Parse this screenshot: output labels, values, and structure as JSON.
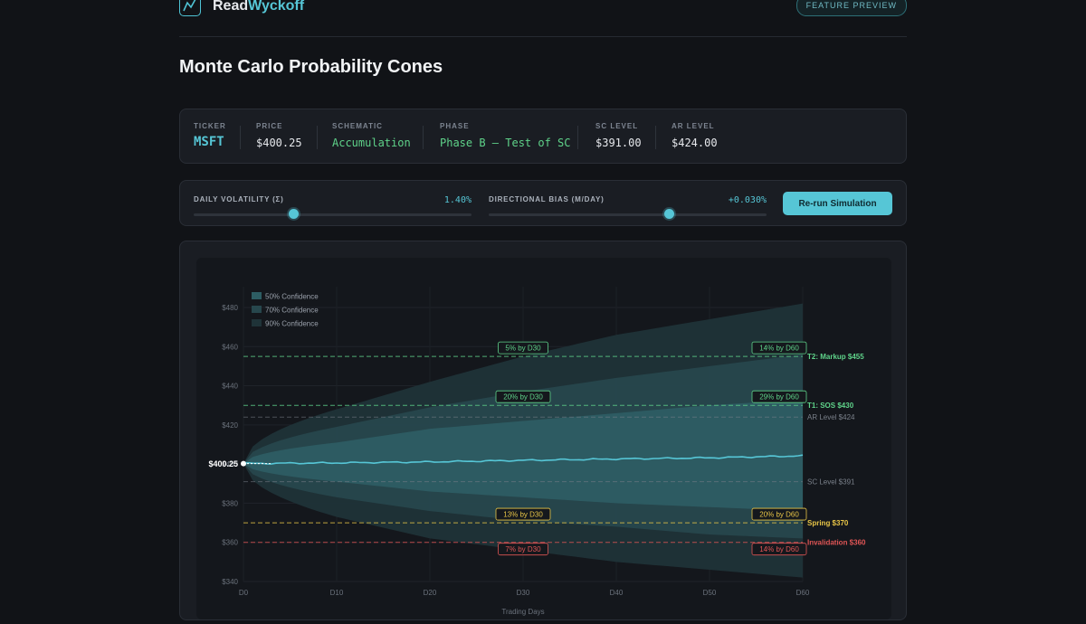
{
  "brand": {
    "name_a": "Read",
    "name_b": "Wyckoff",
    "badge": "FEATURE PREVIEW"
  },
  "page_title": "Monte Carlo Probability Cones",
  "info": {
    "ticker": {
      "label": "TICKER",
      "value": "MSFT"
    },
    "price": {
      "label": "PRICE",
      "value": "$400.25"
    },
    "schematic": {
      "label": "SCHEMATIC",
      "value": "Accumulation"
    },
    "phase": {
      "label": "PHASE",
      "value": "Phase B — Test of SC"
    },
    "sc": {
      "label": "SC LEVEL",
      "value": "$391.00"
    },
    "ar": {
      "label": "AR LEVEL",
      "value": "$424.00"
    }
  },
  "controls": {
    "volatility": {
      "label": "DAILY VOLATILITY (Σ)",
      "value": "1.40%",
      "fraction": 0.36
    },
    "bias": {
      "label": "DIRECTIONAL BIAS (M/DAY)",
      "value": "+0.030%",
      "fraction": 0.65
    },
    "run_label": "Re-run Simulation"
  },
  "colors": {
    "accent": "#56c6d6",
    "green": "#5fd38a",
    "yellow": "#e8c547",
    "red": "#e05555",
    "gray": "#7a808a"
  },
  "chart_data": {
    "type": "area",
    "title": "",
    "xlabel": "Trading Days",
    "ylabel": "",
    "xlim": [
      0,
      60
    ],
    "ylim": [
      340,
      486
    ],
    "x_ticks": [
      "D0",
      "D10",
      "D20",
      "D30",
      "D40",
      "D50",
      "D60"
    ],
    "y_ticks": [
      "$340",
      "$360",
      "$380",
      "$400",
      "$420",
      "$440",
      "$460",
      "$480"
    ],
    "start_price": 400.25,
    "start_label": "$400.25",
    "legend": [
      "50% Confidence",
      "70% Confidence",
      "90% Confidence"
    ],
    "legend_position": "top-left",
    "median": {
      "x": [
        0,
        10,
        20,
        30,
        40,
        50,
        60
      ],
      "y": [
        400.25,
        400.6,
        401.1,
        401.9,
        402.6,
        403.2,
        404.2
      ]
    },
    "bands": [
      {
        "name": "90% Confidence",
        "upper": [
          400.25,
          428,
          442,
          455,
          466,
          474,
          482
        ],
        "lower": [
          400.25,
          373,
          362,
          356,
          350,
          346,
          342
        ]
      },
      {
        "name": "70% Confidence",
        "upper": [
          400.25,
          419,
          429,
          437,
          444,
          450,
          456
        ],
        "lower": [
          400.25,
          383,
          376,
          371,
          368,
          364,
          362
        ]
      },
      {
        "name": "50% Confidence",
        "upper": [
          400.25,
          411,
          418,
          422,
          426,
          430,
          433
        ],
        "lower": [
          400.25,
          391,
          386,
          383,
          380,
          378,
          376
        ]
      }
    ],
    "levels": [
      {
        "value": 455,
        "label": "T2: Markup $455",
        "kind": "green",
        "prob_d30": "5% by D30",
        "prob_d60": "14% by D60"
      },
      {
        "value": 430,
        "label": "T1: SOS $430",
        "kind": "green",
        "prob_d30": "20% by D30",
        "prob_d60": "29% by D60"
      },
      {
        "value": 424,
        "label": "AR Level $424",
        "kind": "gray"
      },
      {
        "value": 391,
        "label": "SC Level $391",
        "kind": "gray"
      },
      {
        "value": 370,
        "label": "Spring $370",
        "kind": "yellow",
        "prob_d30": "13% by D30",
        "prob_d60": "20% by D60"
      },
      {
        "value": 360,
        "label": "Invalidation $360",
        "kind": "red",
        "prob_d30": "7% by D30",
        "prob_d60": "14% by D60"
      }
    ]
  }
}
